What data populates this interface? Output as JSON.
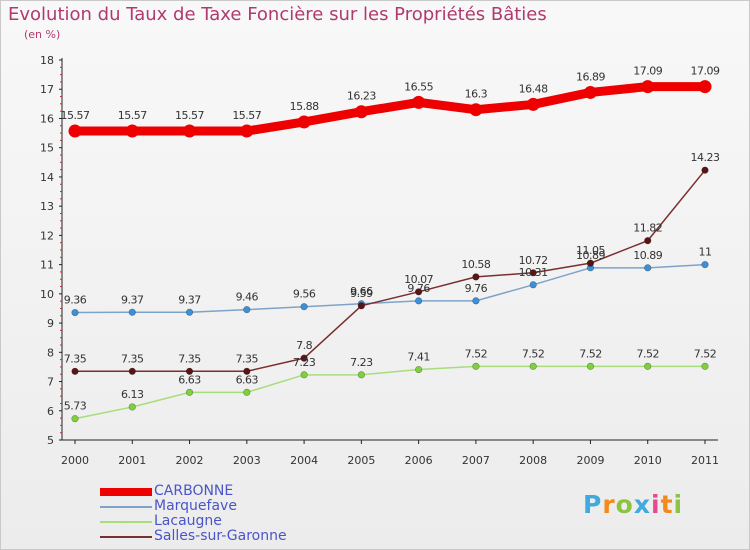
{
  "header": {
    "title": "Evolution du Taux de Taxe Foncière sur les Propriétés Bâties",
    "subtitle": "(en %)"
  },
  "logo": {
    "text": "Proxiti"
  },
  "chart_data": {
    "type": "line",
    "title": "Evolution du Taux de Taxe Foncière sur les Propriétés Bâties",
    "ylabel": "(en %)",
    "xlabel": "",
    "ylim": [
      5,
      18
    ],
    "yticks": [
      "5",
      "6",
      "7",
      "8",
      "9",
      "10",
      "11",
      "12",
      "13",
      "14",
      "15",
      "16",
      "17",
      "18"
    ],
    "categories": [
      "2000",
      "2001",
      "2002",
      "2003",
      "2004",
      "2005",
      "2006",
      "2007",
      "2008",
      "2009",
      "2010",
      "2011"
    ],
    "grid": false,
    "legend_position": "bottom-left",
    "series": [
      {
        "name": "CARBONNE",
        "color": "#ee0000",
        "values": [
          15.57,
          15.57,
          15.57,
          15.57,
          15.88,
          16.23,
          16.55,
          16.3,
          16.48,
          16.89,
          17.09,
          17.09
        ],
        "labels": [
          "15.57",
          "15.57",
          "15.57",
          "15.57",
          "15.88",
          "16.23",
          "16.55",
          "16.3",
          "16.48",
          "16.89",
          "17.09",
          "17.09"
        ]
      },
      {
        "name": "Marquefave",
        "color": "#7ea3c8",
        "marker_color": "#3d8fd6",
        "values": [
          9.36,
          9.37,
          9.37,
          9.46,
          9.56,
          9.66,
          9.76,
          9.76,
          10.31,
          10.89,
          10.89,
          11
        ],
        "labels": [
          "9.36",
          "9.37",
          "9.37",
          "9.46",
          "9.56",
          "9.66",
          "9.76",
          "9.76",
          "10.31",
          "10.89",
          "10.89",
          "11"
        ]
      },
      {
        "name": "Lacaugne",
        "color": "#a8dd7c",
        "marker_color": "#7ed03c",
        "values": [
          5.73,
          6.13,
          6.63,
          6.63,
          7.23,
          7.23,
          7.41,
          7.52,
          7.52,
          7.52,
          7.52,
          7.52
        ],
        "labels": [
          "5.73",
          "6.13",
          "6.63",
          "6.63",
          "7.23",
          "7.23",
          "7.41",
          "7.52",
          "7.52",
          "7.52",
          "7.52",
          "7.52"
        ]
      },
      {
        "name": "Salles-sur-Garonne",
        "color": "#7a2e2e",
        "marker_color": "#5a1414",
        "values": [
          7.35,
          7.35,
          7.35,
          7.35,
          7.8,
          9.59,
          10.07,
          10.58,
          10.72,
          11.05,
          11.82,
          14.23
        ],
        "labels": [
          "7.35",
          "7.35",
          "7.35",
          "7.35",
          "7.8",
          "9.59",
          "10.07",
          "10.58",
          "10.72",
          "11.05",
          "11.82",
          "14.23"
        ]
      }
    ]
  }
}
